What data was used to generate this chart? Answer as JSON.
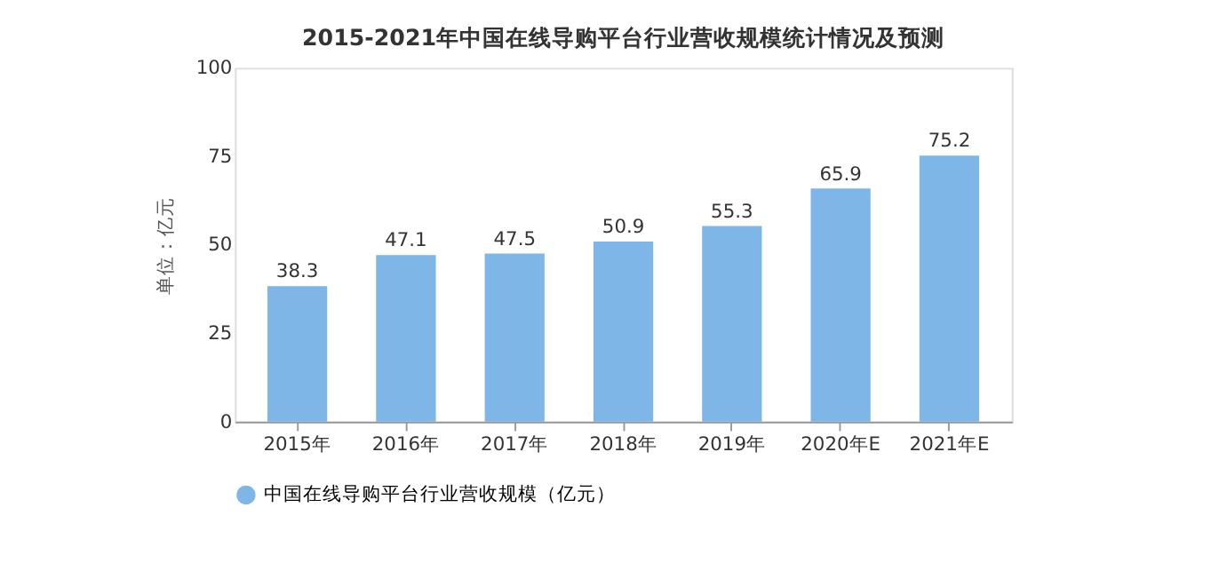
{
  "chart_data": {
    "type": "bar",
    "title": "2015-2021年中国在线导购平台行业营收规模统计情况及预测",
    "ylabel": "单位：亿元",
    "categories": [
      "2015年",
      "2016年",
      "2017年",
      "2018年",
      "2019年",
      "2020年E",
      "2021年E"
    ],
    "series": [
      {
        "name": "中国在线导购平台行业营收规模（亿元）",
        "color": "#7eb6e8",
        "values": [
          38.3,
          47.1,
          47.5,
          50.9,
          55.3,
          65.9,
          75.2
        ]
      }
    ],
    "ylim": [
      0,
      100
    ],
    "yticks": [
      0,
      25,
      50,
      75,
      100
    ],
    "grid": false,
    "legend": "bottom",
    "data_labels": true
  }
}
